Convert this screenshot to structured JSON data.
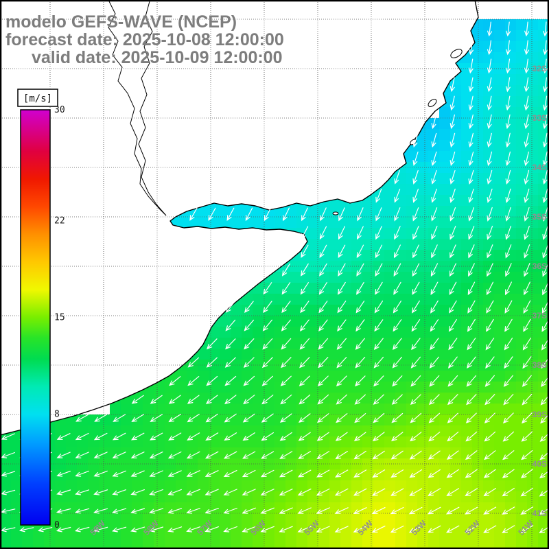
{
  "header": {
    "line1": "modelo GEFS-WAVE (NCEP)",
    "line2": "forecast date: 2025-10-08 12:00:00",
    "line3": "valid date: 2025-10-09 12:00:00"
  },
  "colorbar": {
    "unit_label": "[m/s]",
    "min": 0,
    "max": 30,
    "ticks": [
      30,
      22,
      15,
      8,
      0
    ],
    "stops": [
      {
        "v": 0,
        "c": "#0000f0"
      },
      {
        "v": 3,
        "c": "#0040ff"
      },
      {
        "v": 6,
        "c": "#00a0ff"
      },
      {
        "v": 8,
        "c": "#00e0f0"
      },
      {
        "v": 10,
        "c": "#00eab4"
      },
      {
        "v": 12,
        "c": "#00dc50"
      },
      {
        "v": 13.5,
        "c": "#28e428"
      },
      {
        "v": 15,
        "c": "#78ee00"
      },
      {
        "v": 17,
        "c": "#f0f800"
      },
      {
        "v": 19,
        "c": "#ffc800"
      },
      {
        "v": 21,
        "c": "#ff9000"
      },
      {
        "v": 23,
        "c": "#ff4800"
      },
      {
        "v": 25,
        "c": "#f01800"
      },
      {
        "v": 27,
        "c": "#e00040"
      },
      {
        "v": 30,
        "c": "#d000d0"
      }
    ]
  },
  "axes": {
    "lat_labels": [
      "32S",
      "33S",
      "34S",
      "35S",
      "36S",
      "37S",
      "38S",
      "39S",
      "40S",
      "41S"
    ],
    "lon_labels": [
      "59W",
      "58W",
      "57W",
      "56W",
      "55W",
      "54W",
      "53W",
      "52W",
      "51W"
    ]
  },
  "chart_data": {
    "type": "heatmap",
    "title": "modelo GEFS-WAVE (NCEP)",
    "units": "m/s",
    "value_range": [
      0,
      30
    ],
    "lat_rows": [
      "31S",
      "32S",
      "33S",
      "34S",
      "35S",
      "36S",
      "37S",
      "38S",
      "39S",
      "40S",
      "41S"
    ],
    "wind_speed_ms": [
      [
        null,
        null,
        null,
        null,
        null,
        null,
        null,
        null,
        null,
        7,
        8
      ],
      [
        null,
        null,
        null,
        null,
        null,
        null,
        null,
        null,
        null,
        8,
        9
      ],
      [
        null,
        null,
        null,
        null,
        null,
        null,
        null,
        null,
        7,
        9,
        10
      ],
      [
        null,
        null,
        null,
        null,
        null,
        null,
        null,
        null,
        8,
        9,
        10
      ],
      [
        null,
        null,
        null,
        8,
        8,
        8,
        9,
        9,
        10,
        10,
        11
      ],
      [
        null,
        null,
        null,
        null,
        null,
        10,
        10,
        11,
        11,
        12,
        12
      ],
      [
        null,
        null,
        null,
        null,
        11,
        12,
        12,
        12,
        12,
        13,
        13
      ],
      [
        null,
        null,
        null,
        null,
        12,
        13,
        13,
        13,
        13,
        13,
        14
      ],
      [
        null,
        null,
        12,
        13,
        13,
        13,
        14,
        14,
        15,
        15,
        15
      ],
      [
        12,
        12,
        13,
        13,
        14,
        14,
        15,
        16,
        16,
        15,
        15
      ],
      [
        12,
        13,
        13,
        14,
        14,
        15,
        16,
        17,
        16,
        16,
        15
      ]
    ],
    "wind_dir_toward_deg": [
      [
        205,
        203,
        201,
        199,
        197,
        195,
        193,
        191,
        189,
        187,
        185
      ],
      [
        207,
        205,
        203,
        201,
        199,
        197,
        195,
        193,
        191,
        189,
        187
      ],
      [
        210,
        208,
        206,
        204,
        202,
        200,
        198,
        196,
        194,
        192,
        190
      ],
      [
        213,
        211,
        209,
        207,
        205,
        203,
        201,
        199,
        197,
        195,
        193
      ],
      [
        217,
        215,
        213,
        211,
        209,
        207,
        205,
        203,
        201,
        199,
        197
      ],
      [
        222,
        220,
        218,
        216,
        214,
        212,
        210,
        208,
        206,
        204,
        202
      ],
      [
        228,
        226,
        224,
        222,
        220,
        218,
        216,
        214,
        212,
        210,
        208
      ],
      [
        235,
        233,
        231,
        229,
        227,
        225,
        223,
        221,
        219,
        217,
        215
      ],
      [
        243,
        241,
        239,
        237,
        235,
        233,
        231,
        229,
        227,
        225,
        223
      ],
      [
        251,
        249,
        247,
        245,
        243,
        241,
        239,
        237,
        235,
        233,
        231
      ],
      [
        258,
        256,
        254,
        252,
        250,
        248,
        246,
        244,
        242,
        240,
        238
      ]
    ],
    "arrow_color": "#ffffff"
  }
}
